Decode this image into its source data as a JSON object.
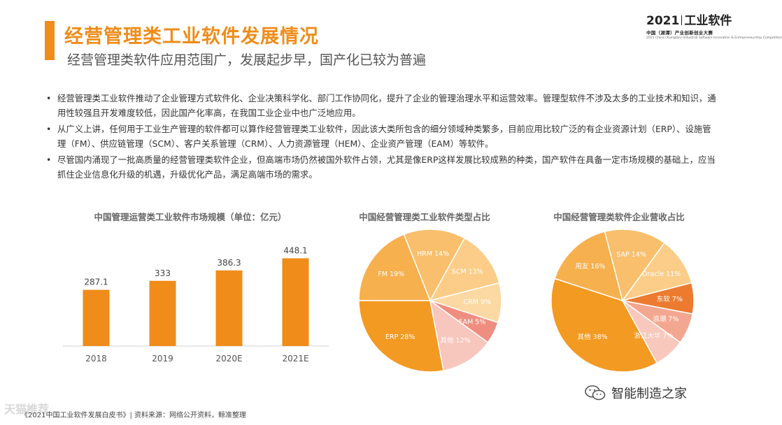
{
  "header": {
    "title": "经营管理类工业软件发展情况",
    "subtitle": "经营管理类软件应用范围广，发展起步早，国产化已较为普遍"
  },
  "logo": {
    "year": "2021",
    "name": "工业软件",
    "line2": "中国（湖潭）产业创新创业大赛",
    "line3": "2021 China (Xiangtan) Industrial Software Innovation & Entrepreneurship Competition"
  },
  "bullets": [
    "经营管理类工业软件推动了企业管理方式软件化、企业决策科学化、部门工作协同化，提升了企业的管理治理水平和运营效率。管理型软件不涉及太多的工业技术和知识，通用性较强且开发难度较低，因此国产化率高，在我国工业企业中也广泛地应用。",
    "从广义上讲，任何用于工业生产管理的软件都可以算作经营管理类工业软件，因此该大类所包含的细分领域种类繁多，目前应用比较广泛的有企业资源计划（ERP）、设施管理（FM）、供应链管理（SCM）、客户关系管理（CRM）、人力资源管理（HEM）、企业资产管理（EAM）等软件。",
    "尽管国内涌现了一批高质量的经营管理类软件企业，但高端市场仍然被国外软件占领，尤其是像ERP这样发展比较成熟的种类，国产软件在具备一定市场规模的基础上，应当抓住企业信息化升级的机遇，升级优化产品，满足高端市场的需求。"
  ],
  "chart_data": [
    {
      "type": "bar",
      "title": "中国管理运营类工业软件市场规模（单位：亿元）",
      "categories": [
        "2018",
        "2019",
        "2020E",
        "2021E"
      ],
      "values": [
        287.1,
        333,
        386.3,
        448.1
      ],
      "value_labels": [
        "287.1",
        "333",
        "386.3",
        "448.1"
      ],
      "ylim": [
        0,
        500
      ],
      "color": "#f08c1a",
      "grid": false
    },
    {
      "type": "pie",
      "title": "中国经营管理类工业软件类型占比",
      "slices": [
        {
          "label": "ERP 28%",
          "value": 28,
          "color": "#f39a22"
        },
        {
          "label": "FM 19%",
          "value": 19,
          "color": "#f7b04e"
        },
        {
          "label": "HRM 14%",
          "value": 14,
          "color": "#f9bf6c"
        },
        {
          "label": "SCM 13%",
          "value": 13,
          "color": "#fbcd88"
        },
        {
          "label": "CRM 9%",
          "value": 9,
          "color": "#fcd9a2"
        },
        {
          "label": "EAM 5%",
          "value": 5,
          "color": "#ef8e80"
        },
        {
          "label": "其他 12%",
          "value": 12,
          "color": "#f7c6bd"
        }
      ]
    },
    {
      "type": "pie",
      "title": "中国经营管理类软件企业营收占比",
      "slices": [
        {
          "label": "其他 38%",
          "value": 38,
          "color": "#f39a22"
        },
        {
          "label": "用友 16%",
          "value": 16,
          "color": "#f7b04e"
        },
        {
          "label": "SAP 14%",
          "value": 14,
          "color": "#f9bf6c"
        },
        {
          "label": "Oracle 11%",
          "value": 11,
          "color": "#fbcd88"
        },
        {
          "label": "东软 7%",
          "value": 7,
          "color": "#ec7b30"
        },
        {
          "label": "浪潮 7%",
          "value": 7,
          "color": "#f4a790"
        },
        {
          "label": "浙江大华 7%",
          "value": 7,
          "color": "#f8c8bc"
        }
      ]
    }
  ],
  "watermark": "天猫推荐",
  "brand": {
    "name": "智能制造之家"
  },
  "footer": "《2021中国工业软件发展白皮书》| 资料来源：网络公开资料，鲸准整理"
}
